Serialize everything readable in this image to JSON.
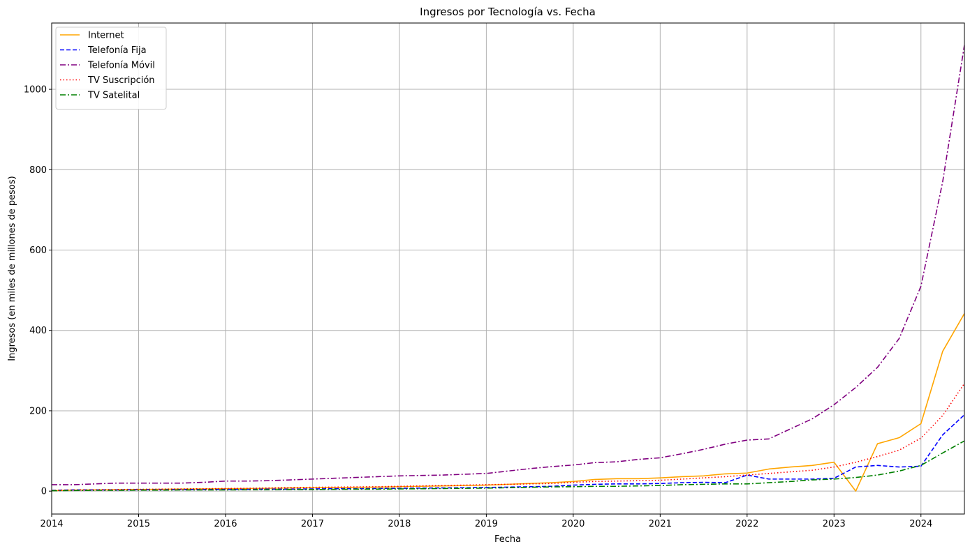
{
  "chart_data": {
    "type": "line",
    "title": "Ingresos por Tecnología vs. Fecha",
    "xlabel": "Fecha",
    "ylabel": "Ingresos (en miles de millones de pesos)",
    "xlim": [
      2014.0,
      2024.5
    ],
    "ylim": [
      -57,
      1165
    ],
    "x_ticks": [
      2014,
      2015,
      2016,
      2017,
      2018,
      2019,
      2020,
      2021,
      2022,
      2023,
      2024
    ],
    "y_ticks": [
      0,
      200,
      400,
      600,
      800,
      1000
    ],
    "grid": true,
    "legend_position": "top-left",
    "x": [
      2014.0,
      2014.25,
      2014.5,
      2014.75,
      2015.0,
      2015.25,
      2015.5,
      2015.75,
      2016.0,
      2016.25,
      2016.5,
      2016.75,
      2017.0,
      2017.25,
      2017.5,
      2017.75,
      2018.0,
      2018.25,
      2018.5,
      2018.75,
      2019.0,
      2019.25,
      2019.5,
      2019.75,
      2020.0,
      2020.25,
      2020.5,
      2020.75,
      2021.0,
      2021.25,
      2021.5,
      2021.75,
      2022.0,
      2022.25,
      2022.5,
      2022.75,
      2023.0,
      2023.25,
      2023.5,
      2023.75,
      2024.0,
      2024.25,
      2024.5
    ],
    "series": [
      {
        "name": "Internet",
        "color": "#ffa500",
        "dash": "solid",
        "values": [
          1,
          2.5,
          3,
          3.5,
          4,
          4.5,
          5,
          5.5,
          6,
          6.5,
          7,
          8,
          8.5,
          9,
          9.5,
          10,
          11,
          12,
          13,
          14,
          15,
          17,
          19,
          21,
          24,
          29,
          31,
          31,
          33,
          36,
          38,
          43,
          45,
          55,
          60,
          64,
          72,
          0,
          118,
          133,
          168,
          348,
          442
        ]
      },
      {
        "name": "Telefonía Fija",
        "color": "#0000ff",
        "dash": "dashed",
        "values": [
          2,
          3,
          3,
          3,
          3.5,
          3.5,
          4,
          4,
          4.5,
          4.5,
          5,
          5,
          5.5,
          6,
          6,
          6.5,
          7,
          7.5,
          8,
          8.5,
          9,
          10,
          11,
          12,
          15,
          17,
          18,
          18,
          19,
          21,
          22,
          21,
          40,
          30,
          30,
          30,
          32,
          60,
          64,
          60,
          62,
          140,
          190
        ]
      },
      {
        "name": "Telefonía Móvil",
        "color": "#800080",
        "dash": "dashdot",
        "values": [
          16,
          16,
          18,
          20,
          20,
          20,
          20,
          22,
          25,
          25,
          26,
          28,
          30,
          32,
          34,
          36,
          38,
          39,
          40,
          42,
          44,
          50,
          56,
          61,
          65,
          71,
          73,
          79,
          83,
          93,
          104,
          117,
          127,
          130,
          155,
          180,
          215,
          258,
          308,
          380,
          510,
          770,
          1110
        ]
      },
      {
        "name": "TV Suscripción",
        "color": "#ff0000",
        "dash": "dotted",
        "values": [
          2,
          3,
          3.5,
          4,
          4.5,
          5,
          5.5,
          6,
          6.5,
          7,
          8,
          9,
          9.5,
          10,
          10.5,
          11,
          12,
          13,
          14,
          15,
          16,
          17,
          18,
          19,
          22,
          24,
          25,
          26,
          27,
          30,
          33,
          36,
          40,
          44,
          48,
          52,
          60,
          72,
          86,
          102,
          132,
          188,
          268
        ]
      },
      {
        "name": "TV Satelital",
        "color": "#008000",
        "dash": "dashdot",
        "values": [
          1,
          1.5,
          2,
          2,
          2.5,
          2.5,
          3,
          3,
          3,
          3.5,
          3.5,
          4,
          4,
          4.5,
          5,
          5,
          5.5,
          6,
          6.5,
          7,
          7.5,
          8.5,
          9.5,
          10.5,
          11,
          12,
          12,
          13,
          14,
          16,
          17,
          18,
          18,
          21,
          24,
          28,
          30,
          34,
          40,
          50,
          64,
          95,
          125
        ]
      }
    ]
  }
}
